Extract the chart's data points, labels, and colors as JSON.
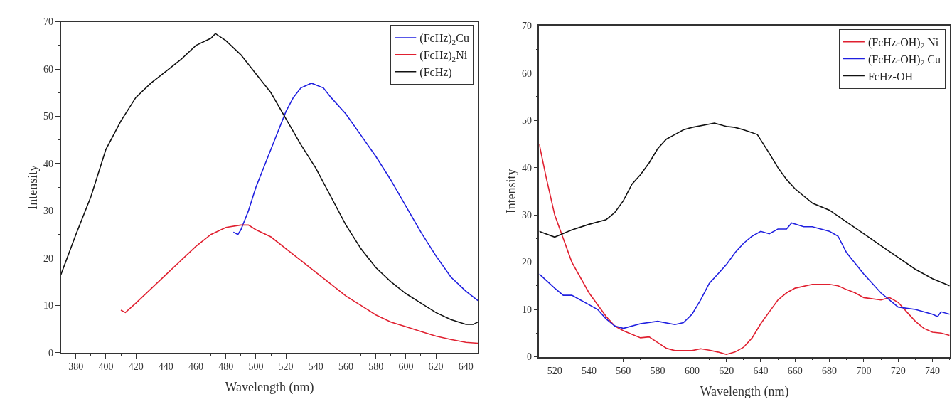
{
  "chart_data": [
    {
      "type": "line",
      "xlabel": "Wavelength (nm)",
      "ylabel": "Intensity",
      "xlim": [
        370,
        648
      ],
      "xticks": [
        380,
        400,
        420,
        440,
        460,
        480,
        500,
        520,
        540,
        560,
        580,
        600,
        620,
        640
      ],
      "ylim": [
        0,
        70
      ],
      "yticks": [
        0,
        10,
        20,
        30,
        40,
        50,
        60,
        70
      ],
      "legend": "top right",
      "series": [
        {
          "name": "(FcHz)$_{2}$Cu",
          "color": "#2020e0",
          "x": [
            485,
            488,
            490,
            495,
            500,
            510,
            520,
            525,
            530,
            537,
            545,
            550,
            560,
            570,
            580,
            590,
            600,
            610,
            620,
            630,
            640,
            648
          ],
          "values": [
            25.5,
            25,
            26,
            30,
            35,
            43,
            51,
            54,
            56,
            57,
            56,
            54,
            50.5,
            46,
            41.5,
            36.5,
            31,
            25.5,
            20.5,
            16,
            13,
            11
          ]
        },
        {
          "name": "(FcHz)$_{2}$Ni",
          "color": "#e02030",
          "x": [
            410,
            413,
            420,
            430,
            440,
            450,
            460,
            470,
            480,
            490,
            495,
            500,
            510,
            520,
            530,
            540,
            550,
            560,
            570,
            580,
            590,
            600,
            610,
            620,
            630,
            640,
            648
          ],
          "values": [
            9,
            8.5,
            10.5,
            13.5,
            16.5,
            19.5,
            22.5,
            25,
            26.5,
            27,
            27,
            26,
            24.5,
            22,
            19.5,
            17,
            14.5,
            12,
            10,
            8,
            6.5,
            5.5,
            4.5,
            3.5,
            2.8,
            2.2,
            2
          ]
        },
        {
          "name": "(FcHz)",
          "color": "#111111",
          "x": [
            370,
            380,
            390,
            400,
            410,
            420,
            430,
            440,
            450,
            460,
            470,
            473,
            480,
            490,
            500,
            510,
            520,
            530,
            540,
            550,
            560,
            570,
            580,
            590,
            600,
            610,
            620,
            630,
            640,
            645,
            648
          ],
          "values": [
            16.5,
            25,
            33,
            43,
            49,
            54,
            57,
            59.5,
            62,
            65,
            66.5,
            67.5,
            66,
            63,
            59,
            55,
            49.5,
            44,
            39,
            33,
            27,
            22,
            18,
            15,
            12.5,
            10.5,
            8.5,
            7,
            6,
            6,
            6.5
          ]
        }
      ]
    },
    {
      "type": "line",
      "xlabel": "Wavelength (nm)",
      "ylabel": "Intensity",
      "xlim": [
        511,
        750
      ],
      "xticks": [
        520,
        540,
        560,
        580,
        600,
        620,
        640,
        660,
        680,
        700,
        720,
        740
      ],
      "ylim": [
        0,
        70
      ],
      "yticks": [
        0,
        10,
        20,
        30,
        40,
        50,
        60,
        70
      ],
      "legend": "top right",
      "series": [
        {
          "name": "(FcHz-OH)$_{2}$ Ni",
          "color": "#e02030",
          "x": [
            511,
            515,
            520,
            530,
            540,
            550,
            555,
            560,
            570,
            575,
            580,
            585,
            590,
            600,
            605,
            610,
            615,
            620,
            625,
            630,
            635,
            640,
            645,
            650,
            655,
            660,
            670,
            680,
            685,
            690,
            695,
            700,
            710,
            715,
            720,
            725,
            730,
            735,
            740,
            745,
            750
          ],
          "values": [
            45,
            38,
            30,
            20,
            13.5,
            8.5,
            6.5,
            5.5,
            4,
            4.2,
            3,
            1.8,
            1.3,
            1.3,
            1.7,
            1.4,
            1,
            0.5,
            1,
            2,
            4,
            7,
            9.5,
            12,
            13.5,
            14.5,
            15.3,
            15.3,
            15,
            14.2,
            13.5,
            12.5,
            12,
            12.5,
            11.5,
            9.5,
            7.5,
            6,
            5.2,
            5,
            4.5
          ]
        },
        {
          "name": "(FcHz-OH)$_{2}$ Cu",
          "color": "#2020e0",
          "x": [
            511,
            520,
            525,
            530,
            535,
            540,
            545,
            550,
            555,
            560,
            570,
            580,
            590,
            595,
            600,
            605,
            610,
            615,
            620,
            625,
            630,
            635,
            640,
            645,
            650,
            655,
            658,
            665,
            670,
            680,
            685,
            690,
            700,
            710,
            720,
            730,
            740,
            743,
            745,
            750
          ],
          "values": [
            17.5,
            14.5,
            13,
            13,
            12,
            11,
            10,
            8,
            6.5,
            6,
            7,
            7.5,
            6.8,
            7.2,
            9,
            12,
            15.5,
            17.5,
            19.5,
            22,
            24,
            25.5,
            26.5,
            26,
            27,
            27,
            28.3,
            27.5,
            27.5,
            26.5,
            25.5,
            22,
            17.5,
            13.5,
            10.5,
            10,
            9,
            8.5,
            9.5,
            9
          ]
        },
        {
          "name": "FcHz-OH",
          "color": "#111111",
          "x": [
            511,
            520,
            530,
            540,
            550,
            555,
            560,
            565,
            570,
            575,
            580,
            585,
            590,
            595,
            600,
            610,
            613,
            620,
            625,
            630,
            638,
            645,
            650,
            655,
            660,
            665,
            670,
            680,
            690,
            700,
            710,
            720,
            730,
            740,
            750
          ],
          "values": [
            26.5,
            25.3,
            26.8,
            28,
            29,
            30.5,
            33,
            36.5,
            38.5,
            41,
            44,
            46,
            47,
            48,
            48.5,
            49.2,
            49.4,
            48.7,
            48.5,
            48,
            47,
            43,
            40,
            37.5,
            35.5,
            34,
            32.5,
            31,
            28.5,
            26,
            23.5,
            21,
            18.5,
            16.5,
            15
          ]
        }
      ]
    }
  ]
}
